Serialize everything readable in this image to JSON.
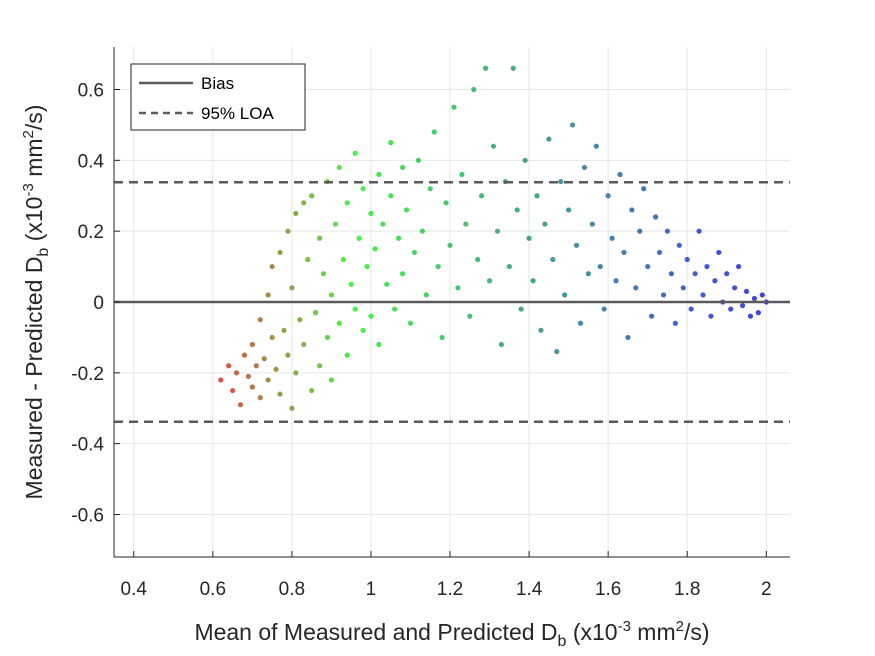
{
  "chart_data": {
    "type": "scatter",
    "title": "",
    "xlabel": "Mean of Measured and Predicted D",
    "xlabel_sub": "b",
    "xlabel_unit_pre": " (x10",
    "xlabel_unit_exp": "-3",
    "xlabel_unit_mid": " mm",
    "xlabel_unit_exp2": "2",
    "xlabel_unit_post": "/s)",
    "ylabel": "Measured - Predicted D",
    "ylabel_sub": "b",
    "ylabel_unit_pre": " (x10",
    "ylabel_unit_exp": "-3",
    "ylabel_unit_mid": " mm",
    "ylabel_unit_exp2": "2",
    "ylabel_unit_post": "/s)",
    "xlim": [
      0.35,
      2.06
    ],
    "ylim": [
      -0.72,
      0.72
    ],
    "xticks": [
      0.4,
      0.6,
      0.8,
      1,
      1.2,
      1.4,
      1.6,
      1.8,
      2
    ],
    "xtick_labels": [
      "0.4",
      "0.6",
      "0.8",
      "1",
      "1.2",
      "1.4",
      "1.6",
      "1.8",
      "2"
    ],
    "yticks": [
      0.6,
      0.4,
      0.2,
      0,
      -0.2,
      -0.4,
      -0.6
    ],
    "ytick_labels": [
      "0.6",
      "0.4",
      "0.2",
      "0",
      "-0.2",
      "-0.4",
      "-0.6"
    ],
    "grid": true,
    "legend_position": "top-left",
    "legend": [
      {
        "label": "Bias",
        "style": "solid"
      },
      {
        "label": "95% LOA",
        "style": "dashed"
      }
    ],
    "bias": 0.0,
    "loa_upper": 0.338,
    "loa_lower": -0.338,
    "point_colors": {
      "low": "#e8231e",
      "mid": "#28f028",
      "high": "#1e1ee8"
    },
    "line_color": "#5a5a5a",
    "points": [
      [
        0.62,
        -0.22
      ],
      [
        0.64,
        -0.18
      ],
      [
        0.65,
        -0.25
      ],
      [
        0.66,
        -0.2
      ],
      [
        0.67,
        -0.29
      ],
      [
        0.68,
        -0.15
      ],
      [
        0.69,
        -0.21
      ],
      [
        0.7,
        -0.12
      ],
      [
        0.7,
        -0.24
      ],
      [
        0.71,
        -0.18
      ],
      [
        0.72,
        -0.05
      ],
      [
        0.72,
        -0.27
      ],
      [
        0.73,
        -0.16
      ],
      [
        0.74,
        0.02
      ],
      [
        0.74,
        -0.22
      ],
      [
        0.75,
        0.1
      ],
      [
        0.75,
        -0.1
      ],
      [
        0.76,
        -0.19
      ],
      [
        0.77,
        0.14
      ],
      [
        0.77,
        -0.26
      ],
      [
        0.78,
        -0.08
      ],
      [
        0.79,
        0.2
      ],
      [
        0.79,
        -0.15
      ],
      [
        0.8,
        0.04
      ],
      [
        0.8,
        -0.3
      ],
      [
        0.81,
        0.25
      ],
      [
        0.81,
        -0.2
      ],
      [
        0.82,
        -0.05
      ],
      [
        0.83,
        0.28
      ],
      [
        0.83,
        -0.12
      ],
      [
        0.84,
        0.12
      ],
      [
        0.85,
        -0.25
      ],
      [
        0.85,
        0.3
      ],
      [
        0.86,
        -0.03
      ],
      [
        0.87,
        0.18
      ],
      [
        0.87,
        -0.18
      ],
      [
        0.88,
        0.08
      ],
      [
        0.89,
        -0.1
      ],
      [
        0.89,
        0.34
      ],
      [
        0.9,
        0.02
      ],
      [
        0.9,
        -0.22
      ],
      [
        0.91,
        0.22
      ],
      [
        0.92,
        -0.06
      ],
      [
        0.92,
        0.38
      ],
      [
        0.93,
        0.12
      ],
      [
        0.94,
        -0.15
      ],
      [
        0.94,
        0.28
      ],
      [
        0.95,
        0.05
      ],
      [
        0.96,
        -0.02
      ],
      [
        0.96,
        0.42
      ],
      [
        0.97,
        0.18
      ],
      [
        0.98,
        -0.08
      ],
      [
        0.98,
        0.32
      ],
      [
        0.99,
        0.1
      ],
      [
        1.0,
        0.25
      ],
      [
        1.0,
        -0.04
      ],
      [
        1.01,
        0.15
      ],
      [
        1.02,
        0.36
      ],
      [
        1.02,
        -0.12
      ],
      [
        1.03,
        0.22
      ],
      [
        1.04,
        0.05
      ],
      [
        1.05,
        0.3
      ],
      [
        1.05,
        0.45
      ],
      [
        1.06,
        -0.02
      ],
      [
        1.07,
        0.18
      ],
      [
        1.08,
        0.38
      ],
      [
        1.08,
        0.08
      ],
      [
        1.09,
        0.26
      ],
      [
        1.1,
        -0.06
      ],
      [
        1.11,
        0.14
      ],
      [
        1.12,
        0.4
      ],
      [
        1.13,
        0.2
      ],
      [
        1.14,
        0.02
      ],
      [
        1.15,
        0.32
      ],
      [
        1.16,
        0.48
      ],
      [
        1.17,
        0.1
      ],
      [
        1.18,
        -0.1
      ],
      [
        1.19,
        0.28
      ],
      [
        1.2,
        0.16
      ],
      [
        1.21,
        0.55
      ],
      [
        1.22,
        0.04
      ],
      [
        1.23,
        0.36
      ],
      [
        1.24,
        0.22
      ],
      [
        1.25,
        -0.04
      ],
      [
        1.26,
        0.6
      ],
      [
        1.27,
        0.12
      ],
      [
        1.28,
        0.3
      ],
      [
        1.29,
        0.66
      ],
      [
        1.3,
        0.06
      ],
      [
        1.31,
        0.44
      ],
      [
        1.32,
        0.2
      ],
      [
        1.33,
        -0.12
      ],
      [
        1.34,
        0.34
      ],
      [
        1.35,
        0.1
      ],
      [
        1.36,
        0.66
      ],
      [
        1.37,
        0.26
      ],
      [
        1.38,
        -0.02
      ],
      [
        1.39,
        0.4
      ],
      [
        1.4,
        0.18
      ],
      [
        1.41,
        0.06
      ],
      [
        1.42,
        0.3
      ],
      [
        1.43,
        -0.08
      ],
      [
        1.44,
        0.22
      ],
      [
        1.45,
        0.46
      ],
      [
        1.46,
        0.12
      ],
      [
        1.47,
        -0.14
      ],
      [
        1.48,
        0.34
      ],
      [
        1.49,
        0.02
      ],
      [
        1.5,
        0.26
      ],
      [
        1.51,
        0.5
      ],
      [
        1.52,
        0.16
      ],
      [
        1.53,
        -0.06
      ],
      [
        1.54,
        0.38
      ],
      [
        1.55,
        0.08
      ],
      [
        1.56,
        0.22
      ],
      [
        1.57,
        0.44
      ],
      [
        1.58,
        0.1
      ],
      [
        1.59,
        -0.02
      ],
      [
        1.6,
        0.3
      ],
      [
        1.61,
        0.18
      ],
      [
        1.62,
        0.06
      ],
      [
        1.63,
        0.36
      ],
      [
        1.64,
        0.14
      ],
      [
        1.65,
        -0.1
      ],
      [
        1.66,
        0.26
      ],
      [
        1.67,
        0.04
      ],
      [
        1.68,
        0.2
      ],
      [
        1.69,
        0.32
      ],
      [
        1.7,
        0.1
      ],
      [
        1.71,
        -0.04
      ],
      [
        1.72,
        0.24
      ],
      [
        1.73,
        0.14
      ],
      [
        1.74,
        0.02
      ],
      [
        1.75,
        0.2
      ],
      [
        1.76,
        0.08
      ],
      [
        1.77,
        -0.06
      ],
      [
        1.78,
        0.16
      ],
      [
        1.79,
        0.04
      ],
      [
        1.8,
        0.12
      ],
      [
        1.81,
        -0.02
      ],
      [
        1.82,
        0.08
      ],
      [
        1.83,
        0.2
      ],
      [
        1.84,
        0.02
      ],
      [
        1.85,
        0.1
      ],
      [
        1.86,
        -0.04
      ],
      [
        1.87,
        0.06
      ],
      [
        1.88,
        0.14
      ],
      [
        1.89,
        0.0
      ],
      [
        1.9,
        0.08
      ],
      [
        1.91,
        -0.02
      ],
      [
        1.92,
        0.04
      ],
      [
        1.93,
        0.1
      ],
      [
        1.94,
        -0.01
      ],
      [
        1.95,
        0.03
      ],
      [
        1.96,
        -0.04
      ],
      [
        1.97,
        0.01
      ],
      [
        1.98,
        -0.03
      ],
      [
        1.99,
        0.02
      ],
      [
        2.0,
        0.0
      ]
    ]
  }
}
